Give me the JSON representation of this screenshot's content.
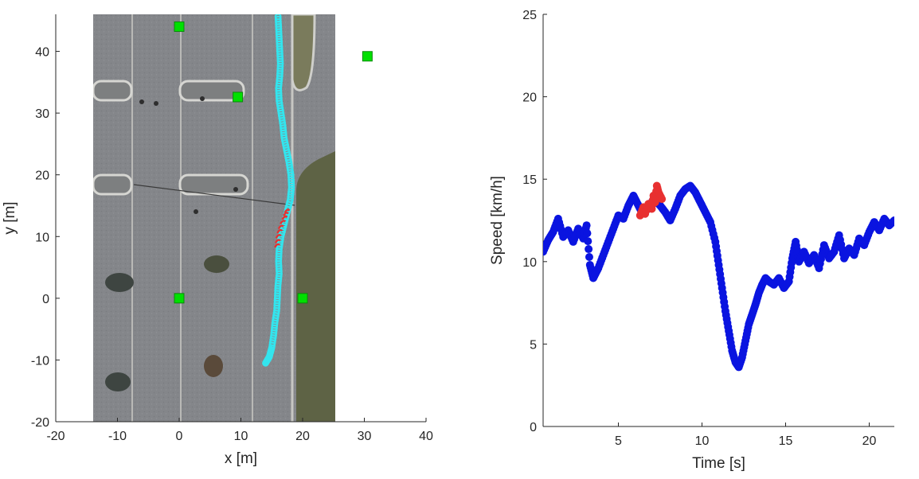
{
  "chart_data": [
    {
      "type": "scatter",
      "xlabel": "x [m]",
      "ylabel": "y [m]",
      "xlim": [
        -20,
        40
      ],
      "ylim": [
        -20,
        46
      ],
      "xticks": [
        -20,
        -10,
        0,
        10,
        20,
        30,
        40
      ],
      "yticks": [
        -20,
        -10,
        0,
        10,
        20,
        30,
        40
      ],
      "background": "aerial satellite image of parking lot",
      "background_extent": {
        "x": [
          -14.5,
          25
        ],
        "y": [
          -20,
          46
        ]
      },
      "anchors": {
        "color": "#00e000",
        "marker": "square",
        "points": [
          [
            0,
            44
          ],
          [
            9.5,
            32.6
          ],
          [
            30.5,
            39.2
          ],
          [
            0,
            0
          ],
          [
            20,
            0
          ]
        ]
      },
      "trajectory": {
        "color": "#33e5ee",
        "points": [
          [
            14.0,
            -10.5
          ],
          [
            14.6,
            -9.5
          ],
          [
            15.0,
            -8.0
          ],
          [
            15.3,
            -6.0
          ],
          [
            15.5,
            -4.0
          ],
          [
            15.8,
            -2.0
          ],
          [
            15.9,
            0.0
          ],
          [
            16.0,
            2.0
          ],
          [
            16.2,
            4.0
          ],
          [
            16.1,
            6.0
          ],
          [
            16.2,
            8.0
          ],
          [
            16.5,
            10.0
          ],
          [
            17.0,
            12.0
          ],
          [
            17.5,
            14.0
          ],
          [
            18.0,
            16.0
          ],
          [
            18.2,
            18.0
          ],
          [
            18.1,
            20.0
          ],
          [
            17.8,
            22.0
          ],
          [
            17.4,
            24.0
          ],
          [
            17.0,
            26.0
          ],
          [
            16.8,
            28.0
          ],
          [
            16.5,
            30.0
          ],
          [
            16.2,
            32.0
          ],
          [
            16.1,
            34.0
          ],
          [
            16.3,
            36.0
          ],
          [
            16.4,
            38.0
          ],
          [
            16.3,
            40.0
          ],
          [
            16.2,
            42.0
          ],
          [
            16.1,
            44.0
          ],
          [
            16.0,
            46.0
          ]
        ]
      },
      "highlight": {
        "color": "#e83030",
        "points": [
          [
            15.9,
            8.5
          ],
          [
            16.0,
            9.2
          ],
          [
            16.1,
            10.0
          ],
          [
            16.3,
            10.8
          ],
          [
            16.5,
            11.5
          ],
          [
            16.8,
            12.3
          ],
          [
            17.1,
            13.0
          ],
          [
            17.3,
            13.6
          ],
          [
            17.5,
            14.1
          ]
        ]
      }
    },
    {
      "type": "scatter",
      "xlabel": "Time [s]",
      "ylabel": "Speed [km/h]",
      "xlim": [
        0.5,
        21.5
      ],
      "ylim": [
        0,
        25
      ],
      "xticks": [
        5,
        10,
        15,
        20
      ],
      "yticks": [
        0,
        5,
        10,
        15,
        20,
        25
      ],
      "series": [
        {
          "color": "#0a14e0",
          "points": [
            [
              0.5,
              10.6
            ],
            [
              0.8,
              11.3
            ],
            [
              1.1,
              11.8
            ],
            [
              1.4,
              12.6
            ],
            [
              1.7,
              11.5
            ],
            [
              2.0,
              11.9
            ],
            [
              2.3,
              11.2
            ],
            [
              2.6,
              12.0
            ],
            [
              2.9,
              11.4
            ],
            [
              3.1,
              12.2
            ],
            [
              3.3,
              9.8
            ],
            [
              3.5,
              9.0
            ],
            [
              3.8,
              9.6
            ],
            [
              4.1,
              10.4
            ],
            [
              4.4,
              11.2
            ],
            [
              4.7,
              12.0
            ],
            [
              5.0,
              12.8
            ],
            [
              5.3,
              12.6
            ],
            [
              5.6,
              13.4
            ],
            [
              5.9,
              14.0
            ],
            [
              6.1,
              13.6
            ],
            [
              6.4,
              13.0
            ],
            [
              6.8,
              13.2
            ],
            [
              7.1,
              13.8
            ],
            [
              7.5,
              13.4
            ],
            [
              7.8,
              13.0
            ],
            [
              8.1,
              12.5
            ],
            [
              8.4,
              13.2
            ],
            [
              8.7,
              14.0
            ],
            [
              9.0,
              14.4
            ],
            [
              9.3,
              14.6
            ],
            [
              9.6,
              14.2
            ],
            [
              9.9,
              13.6
            ],
            [
              10.2,
              13.0
            ],
            [
              10.5,
              12.4
            ],
            [
              10.8,
              11.2
            ],
            [
              11.0,
              9.8
            ],
            [
              11.2,
              8.4
            ],
            [
              11.4,
              7.0
            ],
            [
              11.6,
              5.8
            ],
            [
              11.8,
              4.6
            ],
            [
              12.0,
              3.9
            ],
            [
              12.2,
              3.6
            ],
            [
              12.4,
              4.2
            ],
            [
              12.6,
              5.2
            ],
            [
              12.8,
              6.2
            ],
            [
              13.0,
              6.8
            ],
            [
              13.2,
              7.4
            ],
            [
              13.4,
              8.1
            ],
            [
              13.6,
              8.6
            ],
            [
              13.8,
              9.0
            ],
            [
              14.0,
              8.8
            ],
            [
              14.3,
              8.6
            ],
            [
              14.6,
              9.0
            ],
            [
              14.9,
              8.4
            ],
            [
              15.2,
              8.8
            ],
            [
              15.4,
              10.2
            ],
            [
              15.6,
              11.2
            ],
            [
              15.8,
              10.0
            ],
            [
              16.1,
              10.6
            ],
            [
              16.4,
              9.9
            ],
            [
              16.7,
              10.4
            ],
            [
              17.0,
              9.6
            ],
            [
              17.3,
              11.0
            ],
            [
              17.6,
              10.2
            ],
            [
              17.9,
              10.6
            ],
            [
              18.2,
              11.6
            ],
            [
              18.5,
              10.2
            ],
            [
              18.8,
              10.8
            ],
            [
              19.1,
              10.4
            ],
            [
              19.4,
              11.4
            ],
            [
              19.7,
              11.0
            ],
            [
              20.0,
              11.8
            ],
            [
              20.3,
              12.4
            ],
            [
              20.6,
              11.9
            ],
            [
              20.9,
              12.6
            ],
            [
              21.2,
              12.2
            ],
            [
              21.5,
              12.5
            ]
          ]
        },
        {
          "color": "#e83030",
          "points": [
            [
              6.3,
              12.8
            ],
            [
              6.5,
              13.3
            ],
            [
              6.6,
              12.9
            ],
            [
              6.8,
              13.5
            ],
            [
              7.0,
              13.2
            ],
            [
              7.1,
              14.0
            ],
            [
              7.2,
              13.6
            ],
            [
              7.3,
              14.6
            ],
            [
              7.4,
              14.2
            ],
            [
              7.6,
              13.8
            ]
          ]
        }
      ]
    }
  ]
}
